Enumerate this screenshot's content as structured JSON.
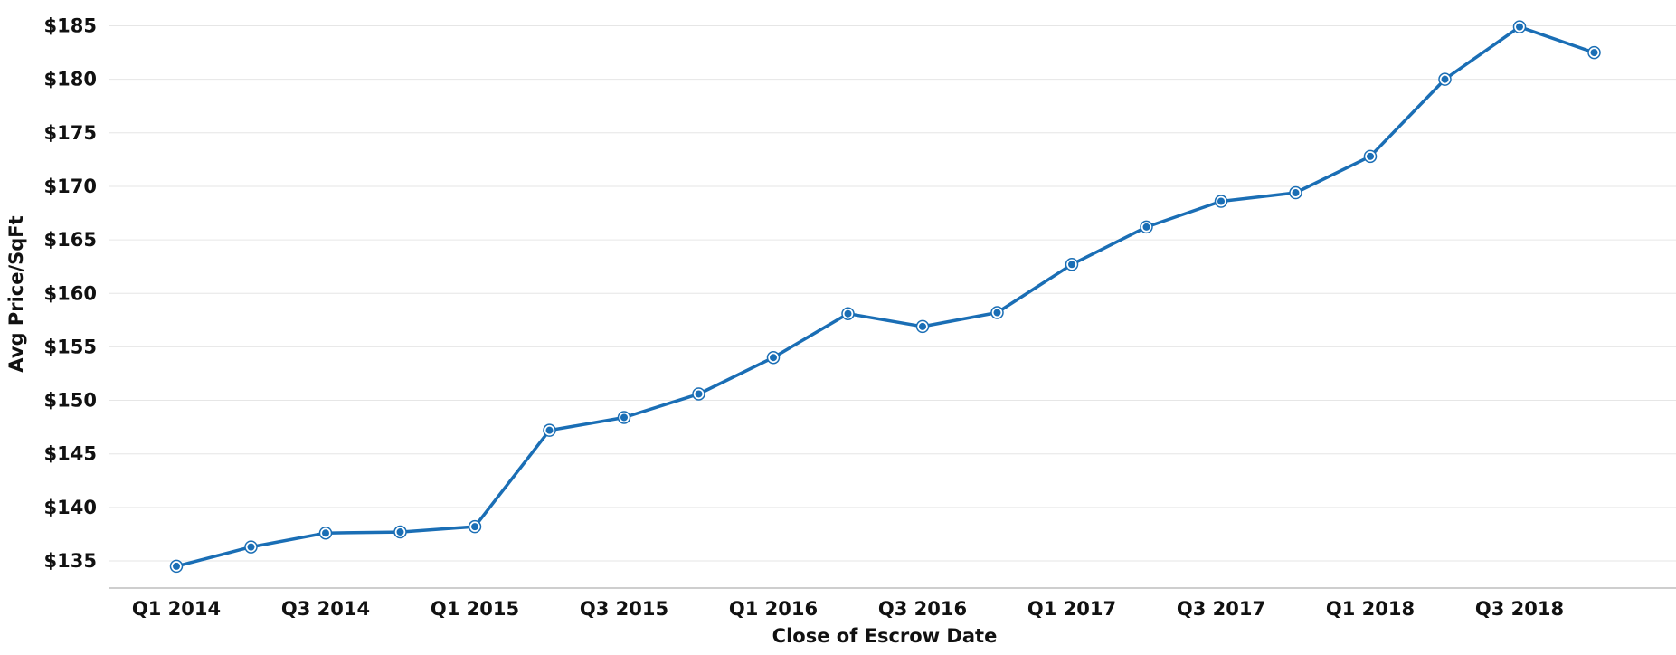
{
  "chart_data": {
    "type": "line",
    "xlabel": "Close of Escrow Date",
    "ylabel": "Avg Price/SqFt",
    "ylim": [
      132,
      187
    ],
    "yticks": [
      "$135",
      "$140",
      "$145",
      "$150",
      "$155",
      "$160",
      "$165",
      "$170",
      "$175",
      "$180",
      "$185"
    ],
    "ytick_values": [
      135,
      140,
      145,
      150,
      155,
      160,
      165,
      170,
      175,
      180,
      185
    ],
    "x_tick_labels": [
      "Q1 2014",
      "Q3 2014",
      "Q1 2015",
      "Q3 2015",
      "Q1 2016",
      "Q3 2016",
      "Q1 2017",
      "Q3 2017",
      "Q1 2018",
      "Q3 2018"
    ],
    "x": [
      "Q1 2014",
      "Q2 2014",
      "Q3 2014",
      "Q4 2014",
      "Q1 2015",
      "Q2 2015",
      "Q3 2015",
      "Q4 2015",
      "Q1 2016",
      "Q2 2016",
      "Q3 2016",
      "Q4 2016",
      "Q1 2017",
      "Q2 2017",
      "Q3 2017",
      "Q4 2017",
      "Q1 2018",
      "Q2 2018",
      "Q3 2018",
      "Q4 2018"
    ],
    "series": [
      {
        "values": [
          134.5,
          136.3,
          137.6,
          137.7,
          138.2,
          147.2,
          148.4,
          150.6,
          154.0,
          158.1,
          156.9,
          158.2,
          162.7,
          166.2,
          168.6,
          169.4,
          172.8,
          180.0,
          184.9,
          182.5
        ],
        "color": "#1a6eb5"
      }
    ],
    "grid": true,
    "legend": "none"
  }
}
